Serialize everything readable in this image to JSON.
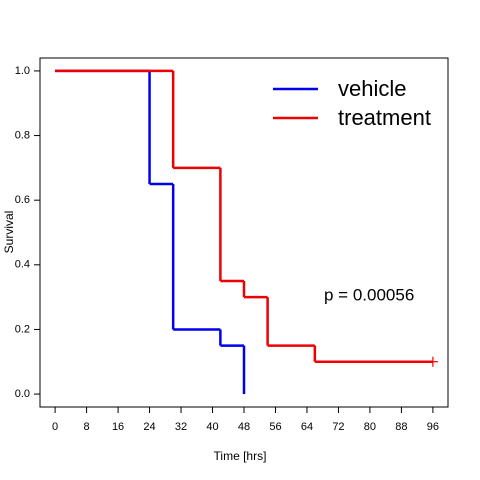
{
  "chart_data": {
    "type": "step",
    "xlabel": "Time [hrs]",
    "ylabel": "Survival",
    "xlim": [
      -3.84,
      99.84
    ],
    "ylim": [
      -0.04,
      1.04
    ],
    "xticks": [
      0,
      8,
      16,
      24,
      32,
      40,
      48,
      56,
      64,
      72,
      80,
      88,
      96
    ],
    "yticks": [
      {
        "value": 0,
        "label": "0.0"
      },
      {
        "value": 0.2,
        "label": "0.2"
      },
      {
        "value": 0.4,
        "label": "0.4"
      },
      {
        "value": 0.6,
        "label": "0.6"
      },
      {
        "value": 0.8,
        "label": "0.8"
      },
      {
        "value": 1,
        "label": "1.0"
      }
    ],
    "legend": "top-right",
    "annotation": "p = 0.00056",
    "series": [
      {
        "name": "vehicle",
        "color": "#0000ee",
        "x": [
          0,
          24,
          30,
          42,
          48
        ],
        "values": [
          1.0,
          0.65,
          0.2,
          0.15,
          0.0
        ]
      },
      {
        "name": "treatment",
        "color": "#ee0000",
        "x": [
          0,
          30,
          42,
          48,
          54,
          66,
          96
        ],
        "values": [
          1.0,
          0.7,
          0.35,
          0.3,
          0.15,
          0.1,
          0.1
        ],
        "censored": [
          96
        ]
      }
    ]
  }
}
